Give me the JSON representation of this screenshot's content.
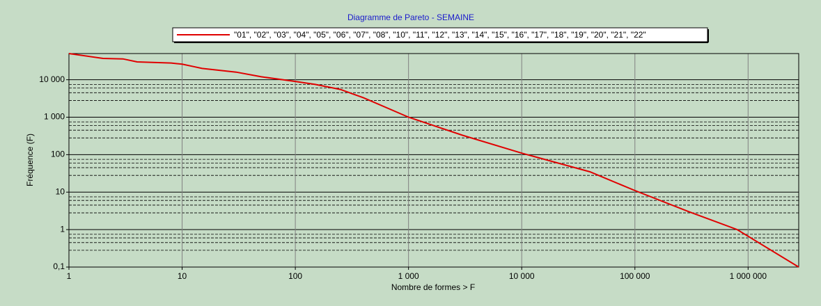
{
  "chart_data": {
    "type": "line",
    "title": "Diagramme de Pareto - SEMAINE",
    "x_label": "Nombre de formes > F",
    "y_label": "Fréquence (F)",
    "log_x": true,
    "log_y": true,
    "grid": true,
    "legend": "top",
    "xlim": [
      1,
      2800000
    ],
    "ylim": [
      0.1,
      50000
    ],
    "xticks": [
      1,
      10,
      100,
      {
        "value": 1000,
        "label": "1 000"
      },
      {
        "value": 10000,
        "label": "10 000"
      },
      {
        "value": 100000,
        "label": "100 000"
      },
      {
        "value": 1000000,
        "label": "1 000 000"
      }
    ],
    "yticks": [
      {
        "value": 0.1,
        "label": "0,1"
      },
      1,
      10,
      100,
      {
        "value": 1000,
        "label": "1 000"
      },
      {
        "value": 10000,
        "label": "10 000"
      }
    ],
    "y_minor_ticks": [
      0.75,
      0.6,
      0.45,
      0.28,
      7.5,
      6,
      4.5,
      2.8,
      75,
      60,
      45,
      28,
      750,
      600,
      450,
      280,
      7500,
      6000,
      4500,
      2800
    ],
    "x": [
      1,
      2,
      3,
      4,
      8,
      10,
      13,
      15,
      30,
      50,
      100,
      150,
      250,
      400,
      1000,
      3000,
      10000,
      40000,
      100000,
      300000,
      800000,
      2800000
    ],
    "series": [
      {
        "name": "\"01\", \"02\", \"03\", \"04\", \"05\", \"06\", \"07\", \"08\", \"10\", \"11\", \"12\", \"13\", \"14\", \"15\", \"16\", \"17\", \"18\", \"19\", \"20\", \"21\", \"22\"",
        "color": "#e00000",
        "values": [
          50000,
          37000,
          36000,
          30000,
          28000,
          26000,
          22000,
          20000,
          16000,
          12000,
          9000,
          7500,
          5500,
          3300,
          1000,
          330,
          110,
          35,
          11,
          3,
          1,
          0.1
        ]
      }
    ]
  }
}
